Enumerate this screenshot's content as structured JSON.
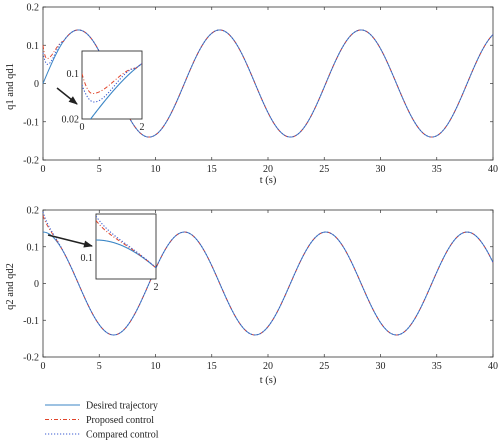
{
  "colors": {
    "desired": "#3b86c6",
    "proposed": "#e0442a",
    "compared": "#3a5bd0",
    "axis": "#333333"
  },
  "legend": {
    "placement": "bottom-left",
    "entries": [
      {
        "label": "Desired trajectory",
        "style": "solid",
        "color_key": "desired"
      },
      {
        "label": "Proposed control",
        "style": "dashdot",
        "color_key": "proposed"
      },
      {
        "label": "Compared control",
        "style": "dotted",
        "color_key": "compared"
      }
    ]
  },
  "chart_data": [
    {
      "type": "line",
      "xlabel": "t (s)",
      "ylabel": "q1 and qd1",
      "xlim": [
        0,
        40
      ],
      "ylim": [
        -0.2,
        0.2
      ],
      "xticks": [
        0,
        5,
        10,
        15,
        20,
        25,
        30,
        35,
        40
      ],
      "yticks": [
        -0.2,
        -0.1,
        0,
        0.1,
        0.2
      ],
      "grid": false,
      "desired": {
        "amplitude": 0.14,
        "omega": 0.5,
        "phase": 0,
        "offset": 0
      },
      "transient": {
        "proposed": {
          "start": 0.1,
          "min": 0.065,
          "t_min": 0.35,
          "t_end": 1.8
        },
        "compared": {
          "start": 0.08,
          "min": 0.05,
          "t_min": 0.4,
          "t_end": 1.8
        }
      },
      "inset": {
        "xlim": [
          0,
          2
        ],
        "ylim": [
          0.02,
          0.14
        ],
        "xticks": [
          0,
          2
        ],
        "yticks": [
          0.02,
          0.1
        ]
      }
    },
    {
      "type": "line",
      "xlabel": "t (s)",
      "ylabel": "q2 and qd2",
      "xlim": [
        0,
        40
      ],
      "ylim": [
        -0.2,
        0.2
      ],
      "xticks": [
        0,
        5,
        10,
        15,
        20,
        25,
        30,
        35,
        40
      ],
      "yticks": [
        -0.2,
        -0.1,
        0,
        0.1,
        0.2
      ],
      "grid": false,
      "desired": {
        "amplitude": 0.14,
        "omega": 0.5,
        "phase": 1.5708,
        "offset": 0
      },
      "transient": {
        "proposed": {
          "start": 0.185,
          "t_end": 2.0
        },
        "compared": {
          "start": 0.195,
          "t_end": 2.2
        }
      },
      "inset": {
        "xlim": [
          0,
          2
        ],
        "ylim": [
          0.05,
          0.2
        ],
        "xticks": [
          2
        ],
        "yticks": [
          0.1
        ]
      }
    }
  ]
}
